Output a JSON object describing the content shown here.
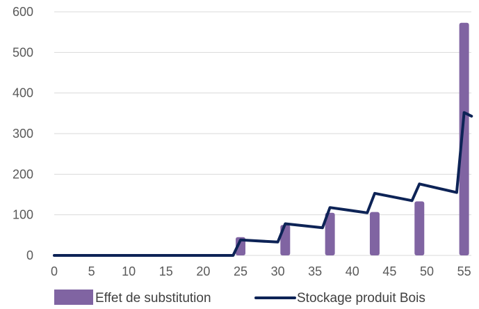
{
  "chart_data": {
    "type": "bar+line",
    "title": "",
    "xlabel": "",
    "ylabel": "",
    "ylim": [
      0,
      600
    ],
    "yticks": [
      0,
      100,
      200,
      300,
      400,
      500,
      600
    ],
    "xlim": [
      0,
      56
    ],
    "xticks": [
      0,
      5,
      10,
      15,
      20,
      25,
      30,
      35,
      40,
      45,
      50,
      55
    ],
    "grid": "horizontal",
    "legend_position": "bottom",
    "series": [
      {
        "name": "Effet de substitution",
        "kind": "bar",
        "color": "#8064a2",
        "points": [
          {
            "x": 25,
            "y": 45
          },
          {
            "x": 31,
            "y": 75
          },
          {
            "x": 37,
            "y": 105
          },
          {
            "x": 43,
            "y": 107
          },
          {
            "x": 49,
            "y": 133
          },
          {
            "x": 55,
            "y": 573
          }
        ]
      },
      {
        "name": "Stockage produit Bois",
        "kind": "line",
        "color": "#0d2356",
        "points": [
          {
            "x": 0,
            "y": 0
          },
          {
            "x": 24,
            "y": 0
          },
          {
            "x": 25,
            "y": 38
          },
          {
            "x": 30,
            "y": 33
          },
          {
            "x": 31,
            "y": 78
          },
          {
            "x": 36,
            "y": 68
          },
          {
            "x": 37,
            "y": 118
          },
          {
            "x": 42,
            "y": 105
          },
          {
            "x": 43,
            "y": 153
          },
          {
            "x": 48,
            "y": 135
          },
          {
            "x": 49,
            "y": 176
          },
          {
            "x": 54,
            "y": 155
          },
          {
            "x": 55,
            "y": 352
          },
          {
            "x": 56,
            "y": 343
          }
        ]
      }
    ]
  }
}
